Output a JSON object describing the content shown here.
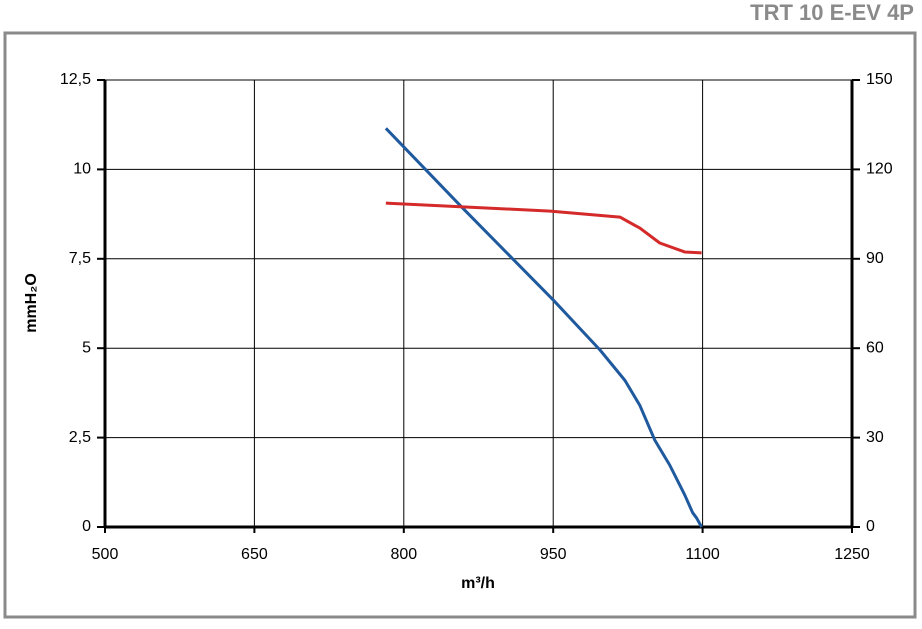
{
  "chart_data": {
    "type": "line",
    "title": "TRT 10 E-EV 4P",
    "x_label": "m³/h",
    "y_label": "mmH₂O",
    "xlim": [
      500,
      1250
    ],
    "xticks": [
      500,
      650,
      800,
      950,
      1100,
      1250
    ],
    "ylim": [
      0,
      12.5
    ],
    "yticks": [
      0,
      {
        "value": 2.5,
        "label": "2,5"
      },
      5,
      {
        "value": 7.5,
        "label": "7,5"
      },
      10,
      {
        "value": 12.5,
        "label": "12,5"
      }
    ],
    "y2lim": [
      0,
      150
    ],
    "y2ticks": [
      0,
      30,
      60,
      90,
      120,
      150
    ],
    "grid": true,
    "series": [
      {
        "color": "#1f5a9e",
        "x": [
          782,
          858,
          950,
          997,
          1022,
          1037,
          1052,
          1067,
          1082,
          1090,
          1094,
          1099
        ],
        "values": [
          11.15,
          8.95,
          6.35,
          4.95,
          4.1,
          3.4,
          2.43,
          1.73,
          0.9,
          0.4,
          0.25,
          0
        ]
      },
      {
        "color": "#d42a2a",
        "axis": "y2",
        "x": [
          782,
          947,
          1017,
          1037,
          1057,
          1082,
          1099
        ],
        "values": [
          108.7,
          106,
          104,
          100.3,
          95.3,
          92.3,
          92
        ]
      }
    ]
  }
}
